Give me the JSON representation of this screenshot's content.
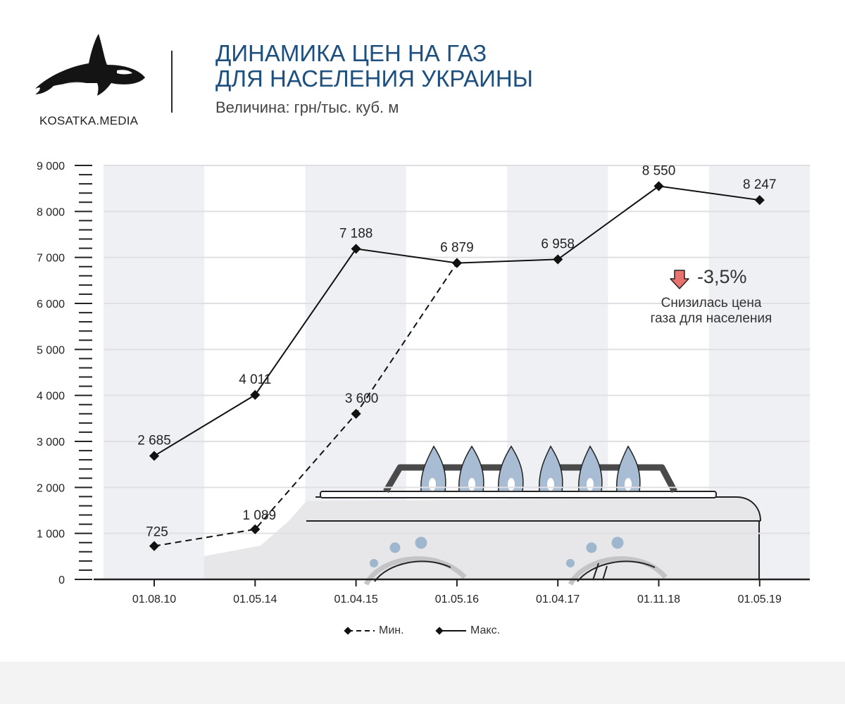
{
  "brand": {
    "name": "KOSATKA.MEDIA",
    "logo_icon": "orca-icon"
  },
  "header": {
    "title_line1": "ДИНАМИКА ЦЕН НА ГАЗ",
    "title_line2": "ДЛЯ НАСЕЛЕНИЯ УКРАИНЫ",
    "subtitle": "Величина: грн/тыс. куб. м"
  },
  "colors": {
    "title": "#1d4f7f",
    "line": "#111111",
    "band": "#eef0f4",
    "grid": "#e0e0e4",
    "down_arrow": "#e8726e",
    "flame": "#9fb6cf"
  },
  "chart_data": {
    "type": "line",
    "title": "ДИНАМИКА ЦЕН НА ГАЗ ДЛЯ НАСЕЛЕНИЯ УКРАИНЫ",
    "ylabel": "Величина: грн/тыс. куб. м",
    "xlabel": "",
    "ylim": [
      0,
      9000
    ],
    "yticks": [
      "0",
      "1 000",
      "2 000",
      "3 000",
      "4 000",
      "5 000",
      "6 000",
      "7 000",
      "8 000",
      "9 000"
    ],
    "grid": true,
    "legend_position": "bottom-center",
    "categories": [
      "01.08.10",
      "01.05.14",
      "01.04.15",
      "01.05.16",
      "01.04.17",
      "01.11.18",
      "01.05.19"
    ],
    "series": [
      {
        "name": "Мин.",
        "style": "dashed",
        "values": [
          725,
          1089,
          3600,
          6879,
          null,
          null,
          null
        ],
        "labels": [
          "725",
          "1 089",
          "3 600",
          null,
          null,
          null,
          null
        ]
      },
      {
        "name": "Макс.",
        "style": "solid",
        "values": [
          2685,
          4011,
          7188,
          6879,
          6958,
          8550,
          8247
        ],
        "labels": [
          "2 685",
          "4 011",
          "7 188",
          "6 879",
          "6 958",
          "8 550",
          "8 247"
        ]
      }
    ],
    "annotations": [
      {
        "text": "-3,5%",
        "icon": "down-arrow-icon"
      },
      {
        "text": "Снизилась цена газа для населения"
      }
    ]
  },
  "annotation": {
    "change": "-3,5%",
    "note_line1": "Снизилась цена",
    "note_line2": "газа для населения"
  },
  "legend": {
    "min_label": "Мин.",
    "max_label": "Макс."
  }
}
